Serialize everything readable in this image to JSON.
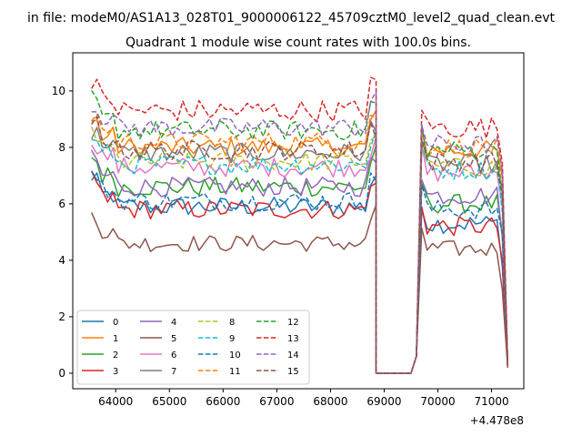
{
  "figure": {
    "suptitle": "in file: modeM0/AS1A13_028T01_9000006122_45709cztM0_level2_quad_clean.evt",
    "title": "Quadrant 1 module wise count rates with 100.0s bins.",
    "offset_label": "+4.478e8"
  },
  "chart_data": {
    "type": "line",
    "title": "Quadrant 1 module wise count rates with 100.0s bins.",
    "xlabel": "",
    "ylabel": "",
    "x_offset": 447800000,
    "xlim": [
      447863200,
      447871600
    ],
    "ylim": [
      -0.55,
      11.35
    ],
    "xticks": [
      64000,
      65000,
      66000,
      67000,
      68000,
      69000,
      70000,
      71000
    ],
    "yticks": [
      0,
      2,
      4,
      6,
      8,
      10
    ],
    "grid": false,
    "legend": {
      "placement": "lower-left",
      "columns": 4
    },
    "segment_1": {
      "x_start": 447863550,
      "x_end": 447868850,
      "step": 100
    },
    "gap": {
      "x": [
        447868850,
        447869000,
        447869500,
        447869600,
        447869700
      ],
      "y": [
        0,
        0,
        0,
        0.6,
        6.5
      ]
    },
    "segment_2": {
      "x_start": 447869700,
      "x_end": 447871250,
      "step": 100,
      "final_x": 447871300
    },
    "series": [
      {
        "name": "0",
        "color": "#1f77b4",
        "dash": "solid",
        "level1": 5.9,
        "level2": 5.3,
        "jitter": 0.35,
        "end_drop": 0.2
      },
      {
        "name": "1",
        "color": "#ff7f0e",
        "dash": "solid",
        "level1": 8.0,
        "level2": 7.9,
        "jitter": 0.35,
        "end_drop": 0.3
      },
      {
        "name": "2",
        "color": "#2ca02c",
        "dash": "solid",
        "level1": 6.6,
        "level2": 6.0,
        "jitter": 0.35,
        "end_drop": 0.25
      },
      {
        "name": "3",
        "color": "#d62728",
        "dash": "solid",
        "level1": 5.8,
        "level2": 5.2,
        "jitter": 0.35,
        "end_drop": 0.2
      },
      {
        "name": "4",
        "color": "#9467bd",
        "dash": "solid",
        "level1": 6.6,
        "level2": 6.3,
        "jitter": 0.35,
        "end_drop": 0.25
      },
      {
        "name": "5",
        "color": "#8c564b",
        "dash": "solid",
        "level1": 4.6,
        "level2": 4.4,
        "jitter": 0.3,
        "end_drop": 0.2
      },
      {
        "name": "6",
        "color": "#e377c2",
        "dash": "solid",
        "level1": 7.3,
        "level2": 7.1,
        "jitter": 0.35,
        "end_drop": 0.3
      },
      {
        "name": "7",
        "color": "#7f7f7f",
        "dash": "solid",
        "level1": 7.8,
        "level2": 7.4,
        "jitter": 0.35,
        "end_drop": 0.3
      },
      {
        "name": "8",
        "color": "#bcbd22",
        "dash": "dashed",
        "level1": 7.5,
        "level2": 7.3,
        "jitter": 0.35,
        "end_drop": 0.3
      },
      {
        "name": "9",
        "color": "#17becf",
        "dash": "dashed",
        "level1": 7.4,
        "level2": 7.2,
        "jitter": 0.35,
        "end_drop": 0.3
      },
      {
        "name": "10",
        "color": "#1f77b4",
        "dash": "dashed",
        "level1": 6.1,
        "level2": 5.8,
        "jitter": 0.35,
        "end_drop": 0.25
      },
      {
        "name": "11",
        "color": "#ff7f0e",
        "dash": "dashed",
        "level1": 8.2,
        "level2": 8.0,
        "jitter": 0.35,
        "end_drop": 0.3
      },
      {
        "name": "12",
        "color": "#2ca02c",
        "dash": "dashed",
        "level1": 8.6,
        "level2": 7.9,
        "jitter": 0.35,
        "end_drop": 0.3
      },
      {
        "name": "13",
        "color": "#d62728",
        "dash": "dashed",
        "level1": 9.3,
        "level2": 8.7,
        "jitter": 0.4,
        "end_drop": 0.3
      },
      {
        "name": "14",
        "color": "#9467bd",
        "dash": "dashed",
        "level1": 8.7,
        "level2": 8.1,
        "jitter": 0.35,
        "end_drop": 0.3
      },
      {
        "name": "15",
        "color": "#8c564b",
        "dash": "dashed",
        "level1": 7.9,
        "level2": 7.5,
        "jitter": 0.35,
        "end_drop": 0.3
      }
    ]
  }
}
